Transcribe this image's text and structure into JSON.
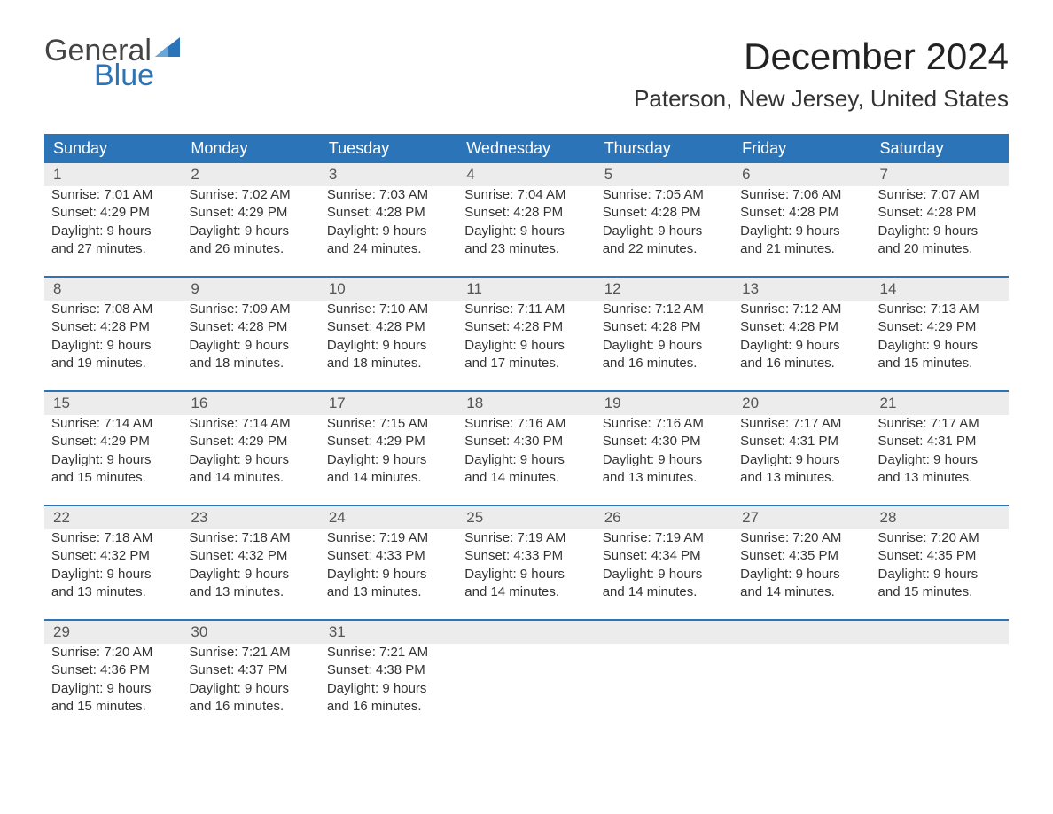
{
  "logo": {
    "word1": "General",
    "word2": "Blue",
    "text_color": "#444444",
    "accent_color": "#2b74b8"
  },
  "title": "December 2024",
  "location": "Paterson, New Jersey, United States",
  "colors": {
    "header_bg": "#2b74b8",
    "header_text": "#ffffff",
    "daynum_bg": "#ececec",
    "body_text": "#333333",
    "page_bg": "#ffffff",
    "row_border": "#2b74b8"
  },
  "day_headers": [
    "Sunday",
    "Monday",
    "Tuesday",
    "Wednesday",
    "Thursday",
    "Friday",
    "Saturday"
  ],
  "weeks": [
    [
      {
        "n": "1",
        "sunrise": "7:01 AM",
        "sunset": "4:29 PM",
        "dl1": "Daylight: 9 hours",
        "dl2": "and 27 minutes."
      },
      {
        "n": "2",
        "sunrise": "7:02 AM",
        "sunset": "4:29 PM",
        "dl1": "Daylight: 9 hours",
        "dl2": "and 26 minutes."
      },
      {
        "n": "3",
        "sunrise": "7:03 AM",
        "sunset": "4:28 PM",
        "dl1": "Daylight: 9 hours",
        "dl2": "and 24 minutes."
      },
      {
        "n": "4",
        "sunrise": "7:04 AM",
        "sunset": "4:28 PM",
        "dl1": "Daylight: 9 hours",
        "dl2": "and 23 minutes."
      },
      {
        "n": "5",
        "sunrise": "7:05 AM",
        "sunset": "4:28 PM",
        "dl1": "Daylight: 9 hours",
        "dl2": "and 22 minutes."
      },
      {
        "n": "6",
        "sunrise": "7:06 AM",
        "sunset": "4:28 PM",
        "dl1": "Daylight: 9 hours",
        "dl2": "and 21 minutes."
      },
      {
        "n": "7",
        "sunrise": "7:07 AM",
        "sunset": "4:28 PM",
        "dl1": "Daylight: 9 hours",
        "dl2": "and 20 minutes."
      }
    ],
    [
      {
        "n": "8",
        "sunrise": "7:08 AM",
        "sunset": "4:28 PM",
        "dl1": "Daylight: 9 hours",
        "dl2": "and 19 minutes."
      },
      {
        "n": "9",
        "sunrise": "7:09 AM",
        "sunset": "4:28 PM",
        "dl1": "Daylight: 9 hours",
        "dl2": "and 18 minutes."
      },
      {
        "n": "10",
        "sunrise": "7:10 AM",
        "sunset": "4:28 PM",
        "dl1": "Daylight: 9 hours",
        "dl2": "and 18 minutes."
      },
      {
        "n": "11",
        "sunrise": "7:11 AM",
        "sunset": "4:28 PM",
        "dl1": "Daylight: 9 hours",
        "dl2": "and 17 minutes."
      },
      {
        "n": "12",
        "sunrise": "7:12 AM",
        "sunset": "4:28 PM",
        "dl1": "Daylight: 9 hours",
        "dl2": "and 16 minutes."
      },
      {
        "n": "13",
        "sunrise": "7:12 AM",
        "sunset": "4:28 PM",
        "dl1": "Daylight: 9 hours",
        "dl2": "and 16 minutes."
      },
      {
        "n": "14",
        "sunrise": "7:13 AM",
        "sunset": "4:29 PM",
        "dl1": "Daylight: 9 hours",
        "dl2": "and 15 minutes."
      }
    ],
    [
      {
        "n": "15",
        "sunrise": "7:14 AM",
        "sunset": "4:29 PM",
        "dl1": "Daylight: 9 hours",
        "dl2": "and 15 minutes."
      },
      {
        "n": "16",
        "sunrise": "7:14 AM",
        "sunset": "4:29 PM",
        "dl1": "Daylight: 9 hours",
        "dl2": "and 14 minutes."
      },
      {
        "n": "17",
        "sunrise": "7:15 AM",
        "sunset": "4:29 PM",
        "dl1": "Daylight: 9 hours",
        "dl2": "and 14 minutes."
      },
      {
        "n": "18",
        "sunrise": "7:16 AM",
        "sunset": "4:30 PM",
        "dl1": "Daylight: 9 hours",
        "dl2": "and 14 minutes."
      },
      {
        "n": "19",
        "sunrise": "7:16 AM",
        "sunset": "4:30 PM",
        "dl1": "Daylight: 9 hours",
        "dl2": "and 13 minutes."
      },
      {
        "n": "20",
        "sunrise": "7:17 AM",
        "sunset": "4:31 PM",
        "dl1": "Daylight: 9 hours",
        "dl2": "and 13 minutes."
      },
      {
        "n": "21",
        "sunrise": "7:17 AM",
        "sunset": "4:31 PM",
        "dl1": "Daylight: 9 hours",
        "dl2": "and 13 minutes."
      }
    ],
    [
      {
        "n": "22",
        "sunrise": "7:18 AM",
        "sunset": "4:32 PM",
        "dl1": "Daylight: 9 hours",
        "dl2": "and 13 minutes."
      },
      {
        "n": "23",
        "sunrise": "7:18 AM",
        "sunset": "4:32 PM",
        "dl1": "Daylight: 9 hours",
        "dl2": "and 13 minutes."
      },
      {
        "n": "24",
        "sunrise": "7:19 AM",
        "sunset": "4:33 PM",
        "dl1": "Daylight: 9 hours",
        "dl2": "and 13 minutes."
      },
      {
        "n": "25",
        "sunrise": "7:19 AM",
        "sunset": "4:33 PM",
        "dl1": "Daylight: 9 hours",
        "dl2": "and 14 minutes."
      },
      {
        "n": "26",
        "sunrise": "7:19 AM",
        "sunset": "4:34 PM",
        "dl1": "Daylight: 9 hours",
        "dl2": "and 14 minutes."
      },
      {
        "n": "27",
        "sunrise": "7:20 AM",
        "sunset": "4:35 PM",
        "dl1": "Daylight: 9 hours",
        "dl2": "and 14 minutes."
      },
      {
        "n": "28",
        "sunrise": "7:20 AM",
        "sunset": "4:35 PM",
        "dl1": "Daylight: 9 hours",
        "dl2": "and 15 minutes."
      }
    ],
    [
      {
        "n": "29",
        "sunrise": "7:20 AM",
        "sunset": "4:36 PM",
        "dl1": "Daylight: 9 hours",
        "dl2": "and 15 minutes."
      },
      {
        "n": "30",
        "sunrise": "7:21 AM",
        "sunset": "4:37 PM",
        "dl1": "Daylight: 9 hours",
        "dl2": "and 16 minutes."
      },
      {
        "n": "31",
        "sunrise": "7:21 AM",
        "sunset": "4:38 PM",
        "dl1": "Daylight: 9 hours",
        "dl2": "and 16 minutes."
      },
      null,
      null,
      null,
      null
    ]
  ],
  "labels": {
    "sunrise_prefix": "Sunrise: ",
    "sunset_prefix": "Sunset: "
  }
}
